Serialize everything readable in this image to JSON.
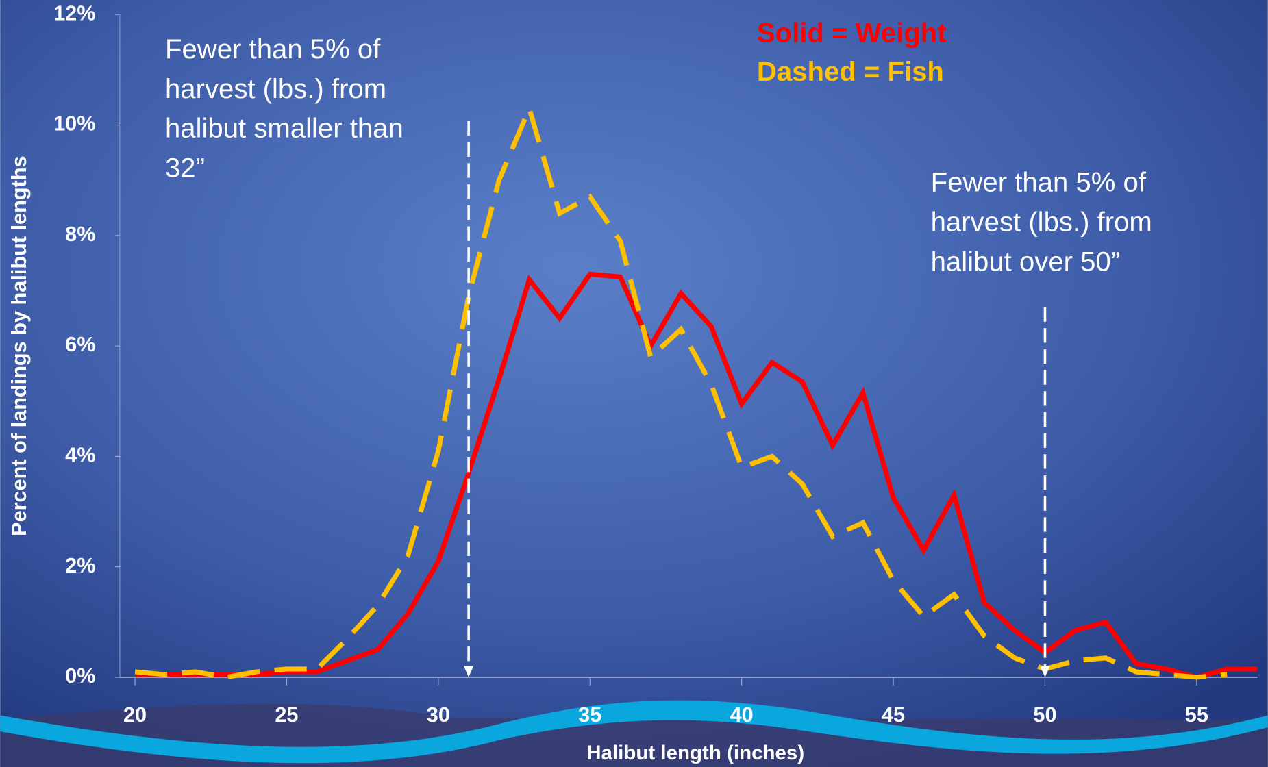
{
  "chart_data": {
    "type": "line",
    "x_label": "Halibut length (inches)",
    "y_label": "Percent of landings by halibut lengths",
    "x": [
      20,
      21,
      22,
      23,
      24,
      25,
      26,
      27,
      28,
      29,
      30,
      31,
      32,
      33,
      34,
      35,
      36,
      37,
      38,
      39,
      40,
      41,
      42,
      43,
      44,
      45,
      46,
      47,
      48,
      49,
      50,
      51,
      52,
      53,
      54,
      55,
      56,
      57
    ],
    "series": [
      {
        "name": "Solid = Weight",
        "color": "#ff0000",
        "dash": "solid",
        "values": [
          0.05,
          0.05,
          0.05,
          0.05,
          0.05,
          0.1,
          0.1,
          0.3,
          0.5,
          1.15,
          2.1,
          3.7,
          5.4,
          7.2,
          6.5,
          7.3,
          7.25,
          6.0,
          6.95,
          6.35,
          4.95,
          5.7,
          5.35,
          4.2,
          5.15,
          3.25,
          2.3,
          3.3,
          1.35,
          0.85,
          0.45,
          0.85,
          1.0,
          0.25,
          0.15,
          0.0,
          0.15,
          0.15
        ]
      },
      {
        "name": "Dashed = Fish",
        "color": "#ffc000",
        "dash": "dashed",
        "values": [
          0.1,
          0.05,
          0.1,
          0.0,
          0.1,
          0.15,
          0.15,
          0.7,
          1.3,
          2.2,
          4.1,
          6.9,
          9.0,
          10.3,
          8.4,
          8.7,
          7.9,
          5.8,
          6.3,
          5.3,
          3.8,
          4.0,
          3.5,
          2.55,
          2.8,
          1.75,
          1.1,
          1.5,
          0.75,
          0.35,
          0.15,
          0.3,
          0.35,
          0.1,
          0.05,
          0.0,
          0.05,
          null
        ]
      }
    ],
    "xlim": [
      19.5,
      57
    ],
    "ylim": [
      0,
      12
    ],
    "xticks": [
      20,
      25,
      30,
      35,
      40,
      45,
      50,
      55
    ],
    "yticks": [
      {
        "value": 0,
        "label": "0%"
      },
      {
        "value": 2,
        "label": "2%"
      },
      {
        "value": 4,
        "label": "4%"
      },
      {
        "value": 6,
        "label": "6%"
      },
      {
        "value": 8,
        "label": "8%"
      },
      {
        "value": 10,
        "label": "10%"
      },
      {
        "value": 12,
        "label": "12%"
      }
    ],
    "reference_lines_x": [
      31,
      50
    ],
    "annotations": [
      {
        "lines": [
          "Fewer than 5% of",
          "harvest (lbs.) from",
          "halibut smaller than",
          "32”"
        ]
      },
      {
        "lines": [
          "Fewer than 5% of",
          "harvest (lbs.) from",
          "halibut over 50”"
        ]
      }
    ]
  }
}
